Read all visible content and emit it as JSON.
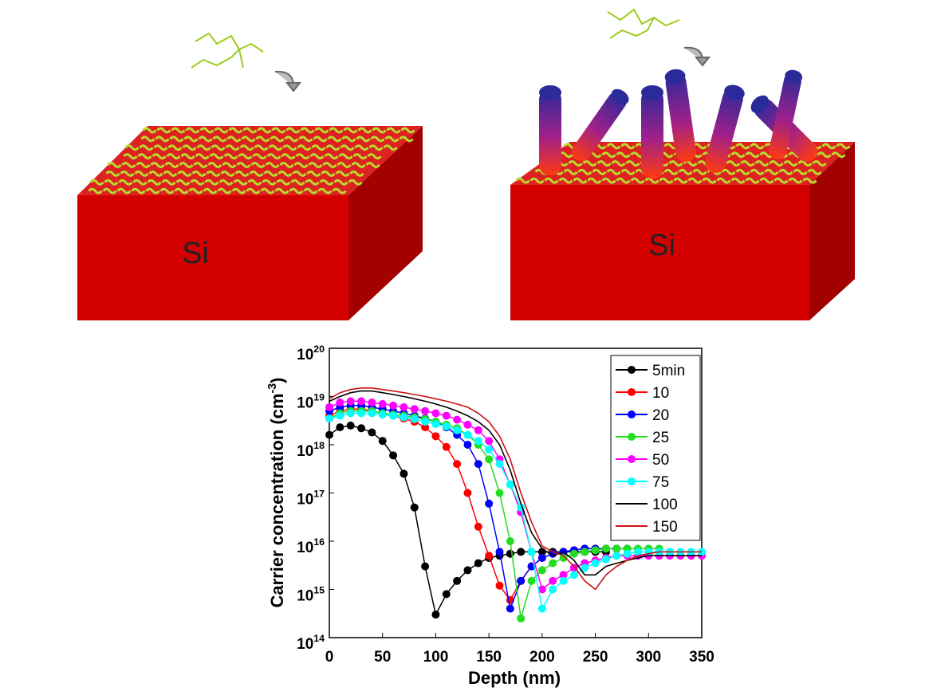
{
  "illustrations": {
    "left_label": "Si",
    "right_label": "Si"
  },
  "chart_data": {
    "type": "line",
    "x_label": "Depth (nm)",
    "y_label": "Carrier concentration (cm^-3)",
    "xlim": [
      0,
      350
    ],
    "xticks": [
      0,
      50,
      100,
      150,
      200,
      250,
      300,
      350
    ],
    "ylim": [
      100000000000000.0,
      1e+20
    ],
    "log_y": true,
    "yticks": [
      {
        "value": 100000000000000.0,
        "label": "10^14"
      },
      {
        "value": 1000000000000000.0,
        "label": "10^15"
      },
      {
        "value": 1e+16,
        "label": "10^16"
      },
      {
        "value": 1e+17,
        "label": "10^17"
      },
      {
        "value": 1e+18,
        "label": "10^18"
      },
      {
        "value": 1e+19,
        "label": "10^19"
      },
      {
        "value": 1e+20,
        "label": "10^20"
      }
    ],
    "legend": "upper right",
    "x": [
      0,
      10,
      20,
      30,
      40,
      50,
      60,
      70,
      80,
      90,
      100,
      110,
      120,
      130,
      140,
      150,
      160,
      170,
      180,
      190,
      200,
      210,
      220,
      230,
      240,
      250,
      260,
      270,
      280,
      290,
      300,
      310,
      320,
      330,
      340,
      350
    ],
    "series": [
      {
        "name": "5min",
        "color": "#000000",
        "marker": "o",
        "values": [
          1.6e+18,
          2.3e+18,
          2.5e+18,
          2.2e+18,
          1.8e+18,
          1.2e+18,
          6e+17,
          2.5e+17,
          5e+16,
          3000000000000000.0,
          300000000000000.0,
          800000000000000.0,
          1500000000000000.0,
          2500000000000000.0,
          3500000000000000.0,
          4500000000000000.0,
          5000000000000000.0,
          5500000000000000.0,
          6000000000000000.0,
          6000000000000000.0,
          6000000000000000.0,
          6000000000000000.0,
          6000000000000000.0,
          6000000000000000.0,
          6000000000000000.0,
          6000000000000000.0,
          6000000000000000.0,
          null,
          null,
          null,
          null,
          null,
          null,
          null,
          null,
          null
        ]
      },
      {
        "name": "10",
        "color": "#ff0000",
        "marker": "o",
        "values": [
          4e+18,
          5e+18,
          5.5e+18,
          5.5e+18,
          5e+18,
          4.5e+18,
          4e+18,
          3.5e+18,
          3e+18,
          2.3e+18,
          1.5e+18,
          9e+17,
          4e+17,
          1e+17,
          2e+16,
          5000000000000000.0,
          1200000000000000.0,
          600000000000000.0,
          1500000000000000.0,
          3000000000000000.0,
          4500000000000000.0,
          5500000000000000.0,
          6000000000000000.0,
          6500000000000000.0,
          7000000000000000.0,
          7000000000000000.0,
          7000000000000000.0,
          7000000000000000.0,
          null,
          null,
          null,
          null,
          null,
          null,
          null,
          null
        ]
      },
      {
        "name": "20",
        "color": "#0000ff",
        "marker": "o",
        "values": [
          5e+18,
          6e+18,
          6.5e+18,
          6.5e+18,
          6e+18,
          5.5e+18,
          5e+18,
          4.5e+18,
          4e+18,
          3.5e+18,
          3e+18,
          2.3e+18,
          1.6e+18,
          1e+18,
          4e+17,
          6e+16,
          6000000000000000.0,
          400000000000000.0,
          1500000000000000.0,
          3000000000000000.0,
          4500000000000000.0,
          5500000000000000.0,
          6000000000000000.0,
          6500000000000000.0,
          7000000000000000.0,
          7000000000000000.0,
          7000000000000000.0,
          7000000000000000.0,
          7000000000000000.0,
          null,
          null,
          null,
          null,
          null,
          null,
          null
        ]
      },
      {
        "name": "25",
        "color": "#22dd22",
        "marker": "o",
        "values": [
          3.5e+18,
          4.5e+18,
          5e+18,
          5e+18,
          5e+18,
          4.5e+18,
          4.2e+18,
          4e+18,
          3.7e+18,
          3.4e+18,
          3e+18,
          2.6e+18,
          2.2e+18,
          1.6e+18,
          1e+18,
          5e+17,
          1e+17,
          1e+16,
          250000000000000.0,
          1500000000000000.0,
          2500000000000000.0,
          3500000000000000.0,
          4500000000000000.0,
          5500000000000000.0,
          6000000000000000.0,
          6500000000000000.0,
          7000000000000000.0,
          7000000000000000.0,
          7000000000000000.0,
          7000000000000000.0,
          7000000000000000.0,
          7000000000000000.0,
          null,
          null,
          null,
          null
        ]
      },
      {
        "name": "50",
        "color": "#ff00ff",
        "marker": "o",
        "values": [
          6e+18,
          7.5e+18,
          8e+18,
          8e+18,
          7.5e+18,
          7e+18,
          6.5e+18,
          6e+18,
          5.5e+18,
          5e+18,
          4.5e+18,
          4e+18,
          3.3e+18,
          2.6e+18,
          2e+18,
          1.2e+18,
          5e+17,
          1.5e+17,
          4e+16,
          6000000000000000.0,
          1000000000000000.0,
          1500000000000000.0,
          2000000000000000.0,
          2800000000000000.0,
          3500000000000000.0,
          4000000000000000.0,
          4500000000000000.0,
          5000000000000000.0,
          5000000000000000.0,
          5000000000000000.0,
          5000000000000000.0,
          5000000000000000.0,
          5000000000000000.0,
          5000000000000000.0,
          5000000000000000.0,
          5000000000000000.0
        ]
      },
      {
        "name": "75",
        "color": "#00ffff",
        "marker": "o",
        "values": [
          3.5e+18,
          4e+18,
          4.5e+18,
          4.5e+18,
          4.5e+18,
          4.2e+18,
          4e+18,
          3.7e+18,
          3.4e+18,
          3e+18,
          2.7e+18,
          2.4e+18,
          2e+18,
          1.6e+18,
          1.2e+18,
          8e+17,
          4e+17,
          1.5e+17,
          5e+16,
          6000000000000000.0,
          400000000000000.0,
          1000000000000000.0,
          1500000000000000.0,
          2000000000000000.0,
          2800000000000000.0,
          3500000000000000.0,
          4200000000000000.0,
          5000000000000000.0,
          5500000000000000.0,
          6000000000000000.0,
          6000000000000000.0,
          6000000000000000.0,
          6000000000000000.0,
          6000000000000000.0,
          6000000000000000.0,
          6000000000000000.0
        ]
      },
      {
        "name": "100",
        "color": "#000000",
        "marker": "none",
        "values": [
          8e+18,
          1e+19,
          1.2e+19,
          1.3e+19,
          1.3e+19,
          1.2e+19,
          1.1e+19,
          1e+19,
          9e+18,
          8e+18,
          7e+18,
          6e+18,
          5e+18,
          4e+18,
          3e+18,
          2e+18,
          1e+18,
          3e+17,
          6e+16,
          1.5e+16,
          7000000000000000.0,
          5000000000000000.0,
          6000000000000000.0,
          4000000000000000.0,
          2000000000000000.0,
          2000000000000000.0,
          3000000000000000.0,
          3500000000000000.0,
          4000000000000000.0,
          4500000000000000.0,
          5000000000000000.0,
          5000000000000000.0,
          5000000000000000.0,
          5000000000000000.0,
          5000000000000000.0,
          5000000000000000.0
        ]
      },
      {
        "name": "150",
        "color": "#cc1111",
        "marker": "none",
        "values": [
          9e+18,
          1.2e+19,
          1.4e+19,
          1.5e+19,
          1.5e+19,
          1.4e+19,
          1.3e+19,
          1.2e+19,
          1.1e+19,
          1e+19,
          9e+18,
          8e+18,
          7e+18,
          6e+18,
          4.5e+18,
          3e+18,
          1.5e+18,
          5e+17,
          1e+17,
          2.5e+16,
          8000000000000000.0,
          6000000000000000.0,
          5000000000000000.0,
          3000000000000000.0,
          1500000000000000.0,
          1000000000000000.0,
          2000000000000000.0,
          3000000000000000.0,
          4000000000000000.0,
          5000000000000000.0,
          5500000000000000.0,
          6000000000000000.0,
          6000000000000000.0,
          6000000000000000.0,
          6000000000000000.0,
          6000000000000000.0
        ]
      }
    ]
  }
}
